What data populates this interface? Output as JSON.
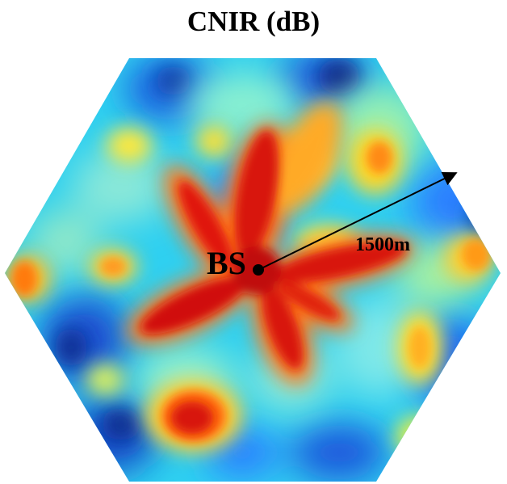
{
  "title": "CNIR (dB)",
  "labels": {
    "base_station": "BS",
    "radius": "1500m"
  },
  "colors": {
    "low": "#08306b",
    "mid_low": "#1e90ff",
    "cyan": "#36d8f0",
    "yellow": "#ffe830",
    "orange": "#ff8c1a",
    "high": "#cc1010"
  }
}
